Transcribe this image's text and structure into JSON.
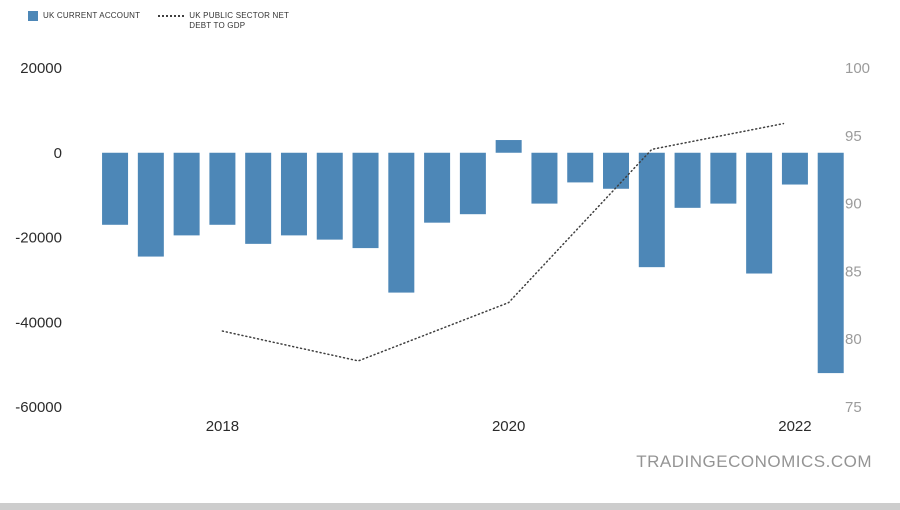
{
  "watermark": "TRADINGECONOMICS.COM",
  "legend": {
    "items": [
      {
        "label": "UK CURRENT ACCOUNT",
        "type": "bar"
      },
      {
        "label": "UK PUBLIC SECTOR NET DEBT TO GDP",
        "type": "line"
      }
    ]
  },
  "colors": {
    "bar": "#4d87b7",
    "line": "#3f3f3f",
    "axis_left_text": "#2b2b2b",
    "axis_right_text": "#9b9b9b",
    "watermark_text": "#949494"
  },
  "chart_data": {
    "type": "bar",
    "title": "",
    "grid": false,
    "legend_position": "top-left",
    "x_axis": {
      "tick_labels": [
        "2018",
        "2020",
        "2022"
      ],
      "tick_values": [
        2018,
        2020,
        2022
      ],
      "range": [
        2017.04,
        2022.28
      ]
    },
    "left_axis": {
      "series": "UK Current Account",
      "ticks": [
        "20000",
        "0",
        "-20000",
        "-40000",
        "-60000"
      ],
      "tick_values": [
        20000,
        0,
        -20000,
        -40000,
        -60000
      ],
      "range": [
        -60000,
        20000
      ]
    },
    "right_axis": {
      "series": "UK Public Sector Net Debt to GDP",
      "ticks": [
        "100",
        "95",
        "90",
        "85",
        "80",
        "75"
      ],
      "tick_values": [
        100,
        95,
        90,
        85,
        80,
        75
      ],
      "range": [
        75,
        100
      ]
    },
    "series": [
      {
        "name": "UK CURRENT ACCOUNT",
        "type": "bar",
        "axis": "left",
        "color": "#4d87b7",
        "quarters": [
          "2017-Q2",
          "2017-Q3",
          "2017-Q4",
          "2018-Q1",
          "2018-Q2",
          "2018-Q3",
          "2018-Q4",
          "2019-Q1",
          "2019-Q2",
          "2019-Q3",
          "2019-Q4",
          "2020-Q1",
          "2020-Q2",
          "2020-Q3",
          "2020-Q4",
          "2021-Q1",
          "2021-Q2",
          "2021-Q3",
          "2021-Q4",
          "2022-Q1",
          "2022-Q2"
        ],
        "x": [
          2017.25,
          2017.5,
          2017.75,
          2018.0,
          2018.25,
          2018.5,
          2018.75,
          2019.0,
          2019.25,
          2019.5,
          2019.75,
          2020.0,
          2020.25,
          2020.5,
          2020.75,
          2021.0,
          2021.25,
          2021.5,
          2021.75,
          2022.0,
          2022.25
        ],
        "values": [
          -17000,
          -24500,
          -19500,
          -17000,
          -21500,
          -19500,
          -20500,
          -22500,
          -33000,
          -16500,
          -14500,
          3000,
          -12000,
          -7000,
          -8500,
          -27000,
          -13000,
          -12000,
          -28500,
          -7500,
          -52000
        ]
      },
      {
        "name": "UK PUBLIC SECTOR NET DEBT TO GDP",
        "type": "line",
        "style": "dotted",
        "axis": "right",
        "color": "#3f3f3f",
        "x": [
          2018.0,
          2018.95,
          2020.0,
          2021.0,
          2021.92
        ],
        "values": [
          80.6,
          78.4,
          82.7,
          94.0,
          95.9
        ]
      }
    ]
  }
}
